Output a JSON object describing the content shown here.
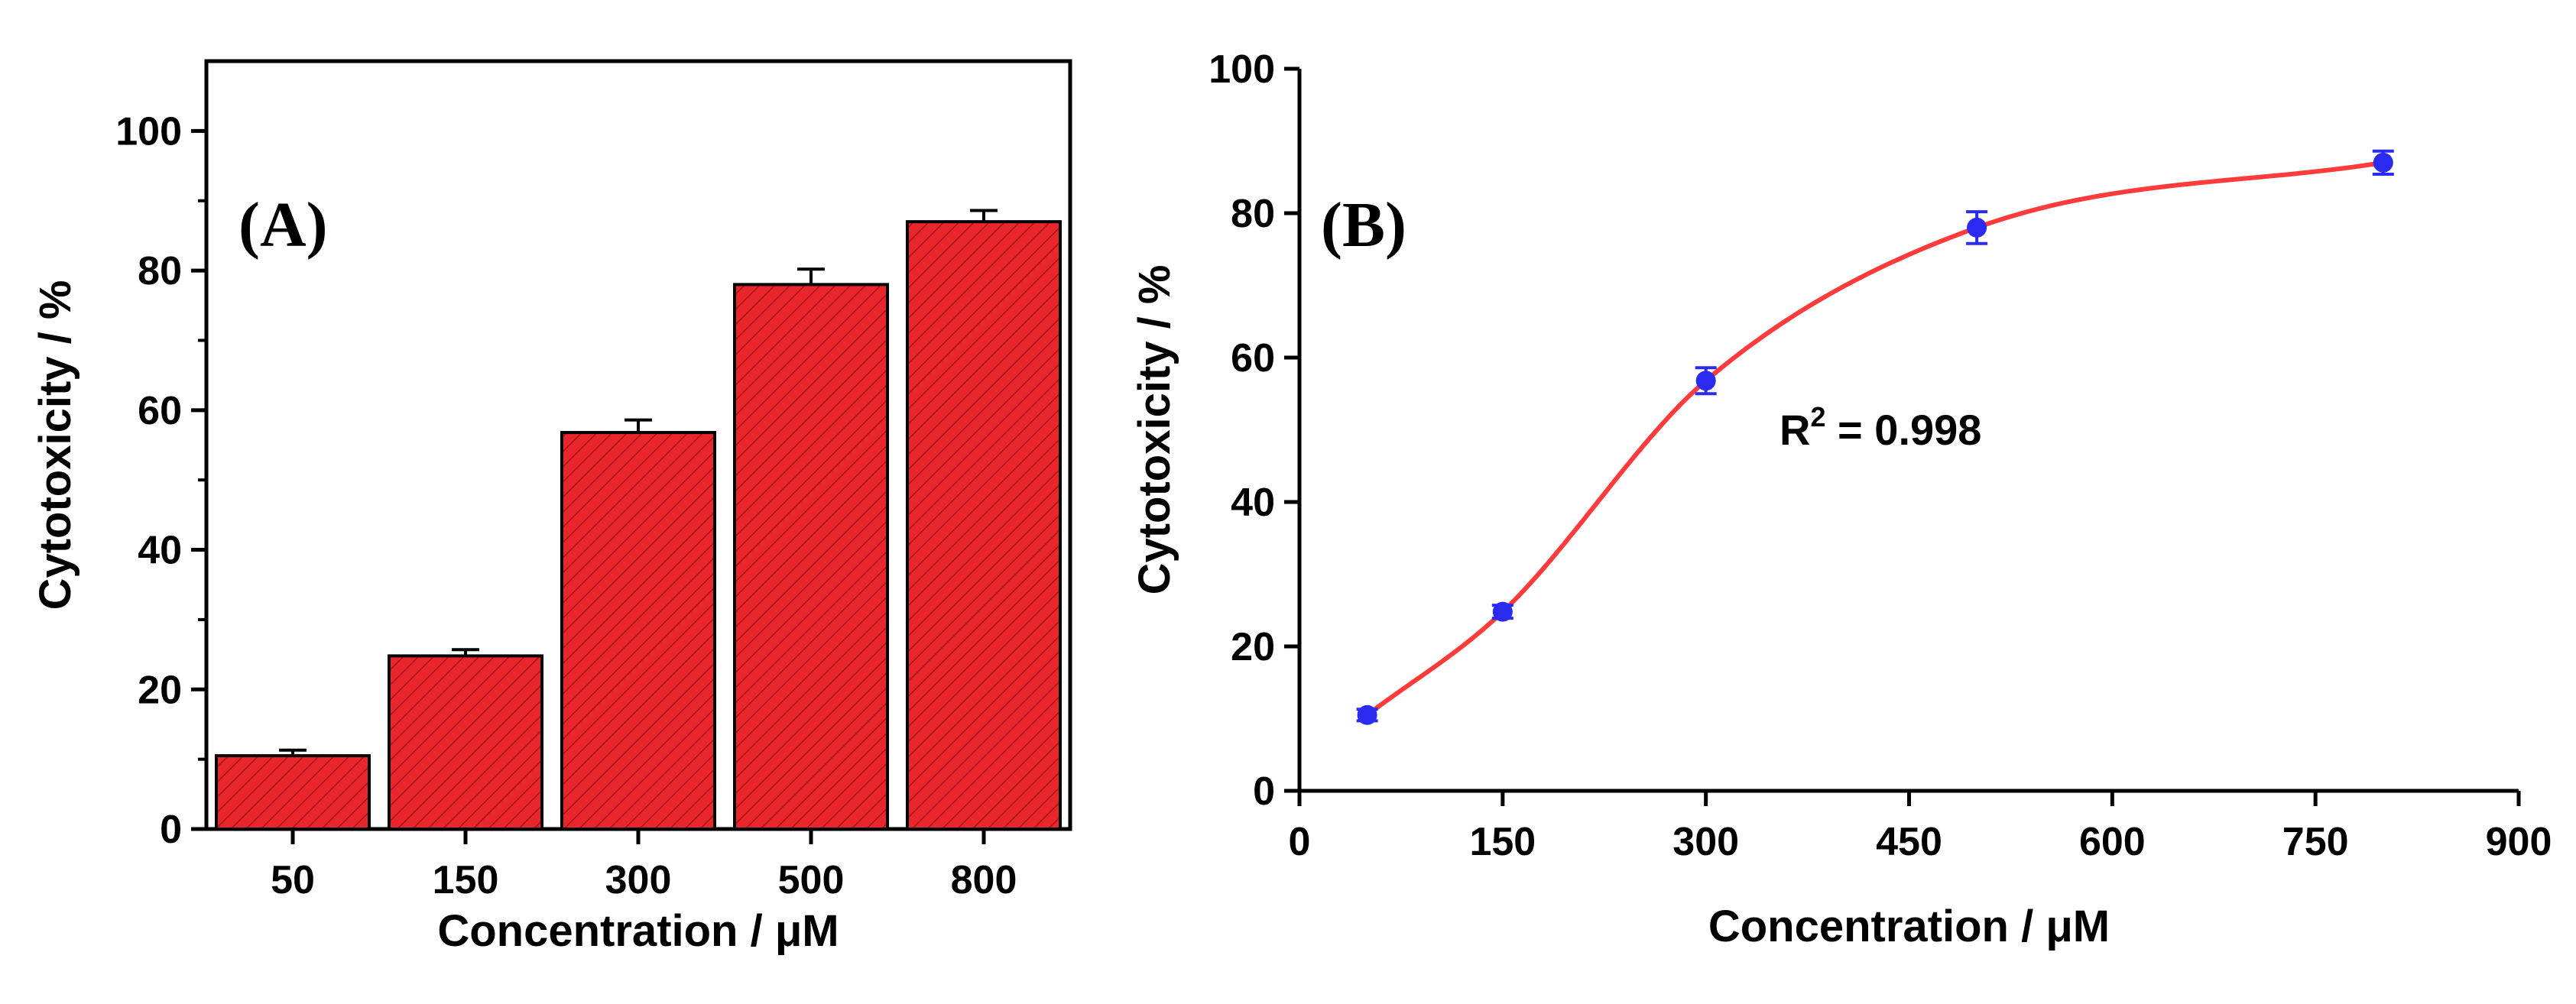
{
  "chart_data": [
    {
      "type": "bar",
      "panel_label": "(A)",
      "categories": [
        "50",
        "150",
        "300",
        "500",
        "800"
      ],
      "values": [
        10.5,
        24.8,
        56.8,
        78.0,
        87.0
      ],
      "errors": [
        0.8,
        0.9,
        1.8,
        2.2,
        1.6
      ],
      "ylim": [
        0,
        110
      ],
      "yticks": [
        0,
        20,
        40,
        60,
        80,
        100
      ],
      "xlabel": "Concentration / μM",
      "ylabel": "Cytotoxicity / %",
      "bar_color": "#e8262b",
      "hatch_color": "#a81418"
    },
    {
      "type": "scatter",
      "panel_label": "(B)",
      "x": [
        50,
        150,
        300,
        500,
        800
      ],
      "y": [
        10.5,
        24.8,
        56.8,
        78.0,
        87.0
      ],
      "errors": [
        0.8,
        0.9,
        1.8,
        2.2,
        1.6
      ],
      "xlim": [
        0,
        900
      ],
      "ylim": [
        0,
        100
      ],
      "xticks": [
        0,
        150,
        300,
        450,
        600,
        750,
        900
      ],
      "yticks": [
        0,
        20,
        40,
        60,
        80,
        100
      ],
      "xlabel": "Concentration / μM",
      "ylabel": "Cytotoxicity / %",
      "fit": {
        "type": "sigmoidal",
        "color": "#ff3b3b",
        "r2_label": "R",
        "r2_sup": "2",
        "r2_value": " = 0.998"
      },
      "point_color": "#2b2bf0"
    }
  ]
}
